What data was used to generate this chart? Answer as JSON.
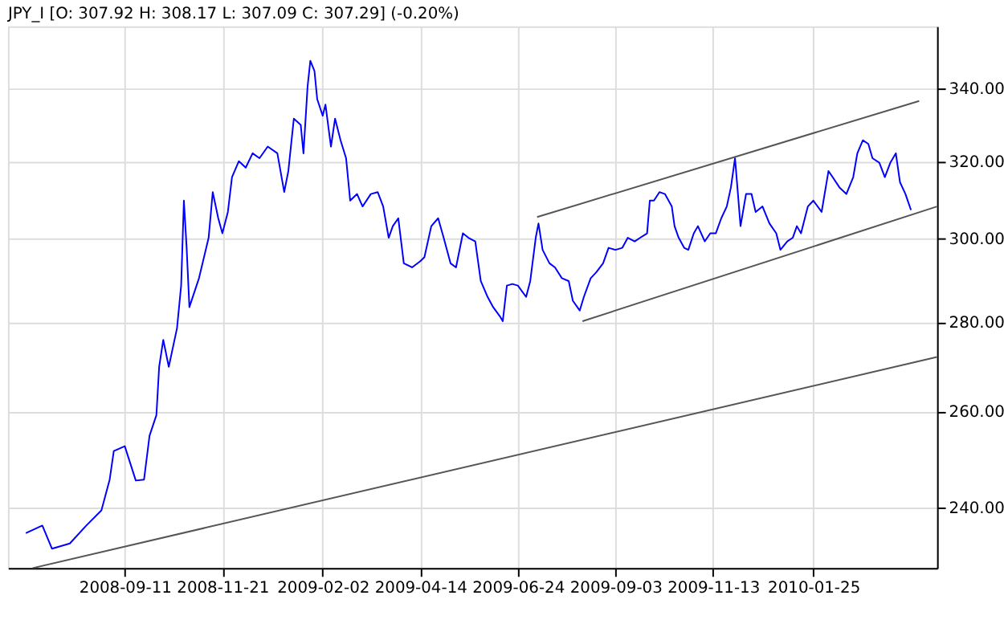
{
  "chart_data": {
    "type": "line",
    "title": "JPY_I [O: 307.92  H: 308.17  L: 307.09  C: 307.29] (-0.20%)",
    "log": true,
    "grid": true,
    "xlim": [
      "2008-06-18",
      "2010-04-25"
    ],
    "xticks": [
      "2008-09-11",
      "2008-11-21",
      "2009-02-02",
      "2009-04-14",
      "2009-06-24",
      "2009-09-03",
      "2009-11-13",
      "2010-01-25"
    ],
    "ylim": [
      228.3,
      357.9
    ],
    "yticks": [
      {
        "value": 240,
        "label": "240.00"
      },
      {
        "value": 260,
        "label": "260.00"
      },
      {
        "value": 280,
        "label": "280.00"
      },
      {
        "value": 300,
        "label": "300.00"
      },
      {
        "value": 320,
        "label": "320.00"
      },
      {
        "value": 340,
        "label": "340.00"
      }
    ],
    "series": [
      {
        "color": "#0000ff",
        "x": [
          "2008-07-01",
          "2008-07-13",
          "2008-07-20",
          "2008-08-02",
          "2008-08-14",
          "2008-08-25",
          "2008-08-31",
          "2008-09-03",
          "2008-09-11",
          "2008-09-19",
          "2008-09-25",
          "2008-09-29",
          "2008-10-04",
          "2008-10-06",
          "2008-10-09",
          "2008-10-13",
          "2008-10-19",
          "2008-10-22",
          "2008-10-24",
          "2008-10-26",
          "2008-10-28",
          "2008-11-04",
          "2008-11-11",
          "2008-11-14",
          "2008-11-18",
          "2008-11-21",
          "2008-11-25",
          "2008-11-28",
          "2008-12-03",
          "2008-12-08",
          "2008-12-13",
          "2008-12-18",
          "2008-12-24",
          "2008-12-31",
          "2009-01-05",
          "2009-01-08",
          "2009-01-12",
          "2009-01-17",
          "2009-01-19",
          "2009-01-22",
          "2009-01-24",
          "2009-01-27",
          "2009-01-29",
          "2009-02-02",
          "2009-02-04",
          "2009-02-08",
          "2009-02-11",
          "2009-02-15",
          "2009-02-19",
          "2009-02-22",
          "2009-02-27",
          "2009-03-03",
          "2009-03-09",
          "2009-03-14",
          "2009-03-18",
          "2009-03-22",
          "2009-03-25",
          "2009-03-29",
          "2009-04-02",
          "2009-04-08",
          "2009-04-14",
          "2009-04-17",
          "2009-04-22",
          "2009-04-27",
          "2009-05-01",
          "2009-05-06",
          "2009-05-10",
          "2009-05-15",
          "2009-05-19",
          "2009-05-24",
          "2009-05-28",
          "2009-06-02",
          "2009-06-06",
          "2009-06-11",
          "2009-06-13",
          "2009-06-16",
          "2009-06-20",
          "2009-06-24",
          "2009-06-30",
          "2009-07-03",
          "2009-07-07",
          "2009-07-09",
          "2009-07-12",
          "2009-07-17",
          "2009-07-21",
          "2009-07-26",
          "2009-07-31",
          "2009-08-03",
          "2009-08-08",
          "2009-08-11",
          "2009-08-16",
          "2009-08-20",
          "2009-08-25",
          "2009-08-29",
          "2009-09-03",
          "2009-09-08",
          "2009-09-12",
          "2009-09-17",
          "2009-09-21",
          "2009-09-26",
          "2009-09-28",
          "2009-10-01",
          "2009-10-05",
          "2009-10-09",
          "2009-10-14",
          "2009-10-16",
          "2009-10-19",
          "2009-10-23",
          "2009-10-26",
          "2009-10-30",
          "2009-11-02",
          "2009-11-07",
          "2009-11-11",
          "2009-11-15",
          "2009-11-19",
          "2009-11-23",
          "2009-11-26",
          "2009-11-29",
          "2009-12-01",
          "2009-12-03",
          "2009-12-07",
          "2009-12-11",
          "2009-12-14",
          "2009-12-19",
          "2009-12-24",
          "2009-12-29",
          "2010-01-01",
          "2010-01-06",
          "2010-01-10",
          "2010-01-13",
          "2010-01-16",
          "2010-01-21",
          "2010-01-25",
          "2010-01-31",
          "2010-02-05",
          "2010-02-08",
          "2010-02-13",
          "2010-02-18",
          "2010-02-23",
          "2010-02-26",
          "2010-03-02",
          "2010-03-06",
          "2010-03-09",
          "2010-03-14",
          "2010-03-18",
          "2010-03-22",
          "2010-03-26",
          "2010-03-29",
          "2010-04-02",
          "2010-04-06"
        ],
        "values": [
          235,
          236.5,
          232,
          233,
          236.5,
          239.5,
          245.7,
          251.6,
          252.6,
          245.5,
          245.7,
          254.8,
          259.2,
          269.8,
          275.9,
          269.8,
          278.6,
          288.6,
          309.7,
          297.8,
          283.5,
          290.4,
          300.3,
          311.9,
          305.2,
          301.4,
          306.8,
          315.8,
          320,
          318.3,
          322.1,
          320.8,
          323.9,
          322.1,
          311.9,
          317.4,
          331.5,
          329.8,
          322.1,
          340.5,
          347.8,
          344.9,
          336.9,
          332.3,
          335.4,
          323.9,
          331.5,
          325.6,
          320.8,
          309.7,
          311.4,
          308.2,
          311.4,
          311.9,
          308.2,
          300.3,
          303.2,
          305.2,
          294,
          293,
          294.5,
          295.5,
          303.2,
          305.2,
          300.3,
          294,
          293,
          301.4,
          300.3,
          299.4,
          289.7,
          285.9,
          283.5,
          281.3,
          280.2,
          288.6,
          289,
          288.6,
          285.9,
          289.7,
          300.3,
          303.9,
          297.3,
          294,
          293,
          290.4,
          289.7,
          285,
          282.7,
          285.9,
          290.4,
          291.8,
          294,
          297.8,
          297.3,
          297.8,
          300.3,
          299.4,
          300.3,
          301.4,
          309.7,
          309.7,
          311.9,
          311.4,
          308.2,
          303.2,
          300.3,
          297.8,
          297.3,
          301.4,
          303.2,
          299.4,
          301.4,
          301.4,
          305.2,
          308.2,
          313.1,
          320.8,
          311.9,
          303.2,
          311.4,
          311.4,
          306.8,
          308.2,
          303.9,
          301.4,
          297.3,
          299.4,
          300.3,
          303.2,
          301.4,
          308.2,
          309.7,
          306.8,
          317.4,
          315.8,
          313.1,
          311.4,
          315.8,
          322.1,
          325.6,
          324.6,
          320.8,
          319.6,
          315.8,
          319.6,
          322.1,
          314.5,
          311.4,
          307.3
        ]
      },
      {
        "color": "#555555",
        "x": [
          "2008-07-06",
          "2010-04-25"
        ],
        "values": [
          228.3,
          272.0
        ]
      },
      {
        "color": "#555555",
        "x": [
          "2009-07-08",
          "2010-04-12"
        ],
        "values": [
          305.5,
          336.4
        ]
      },
      {
        "color": "#555555",
        "x": [
          "2009-08-10",
          "2010-04-25"
        ],
        "values": [
          280.2,
          308.2
        ]
      }
    ]
  }
}
